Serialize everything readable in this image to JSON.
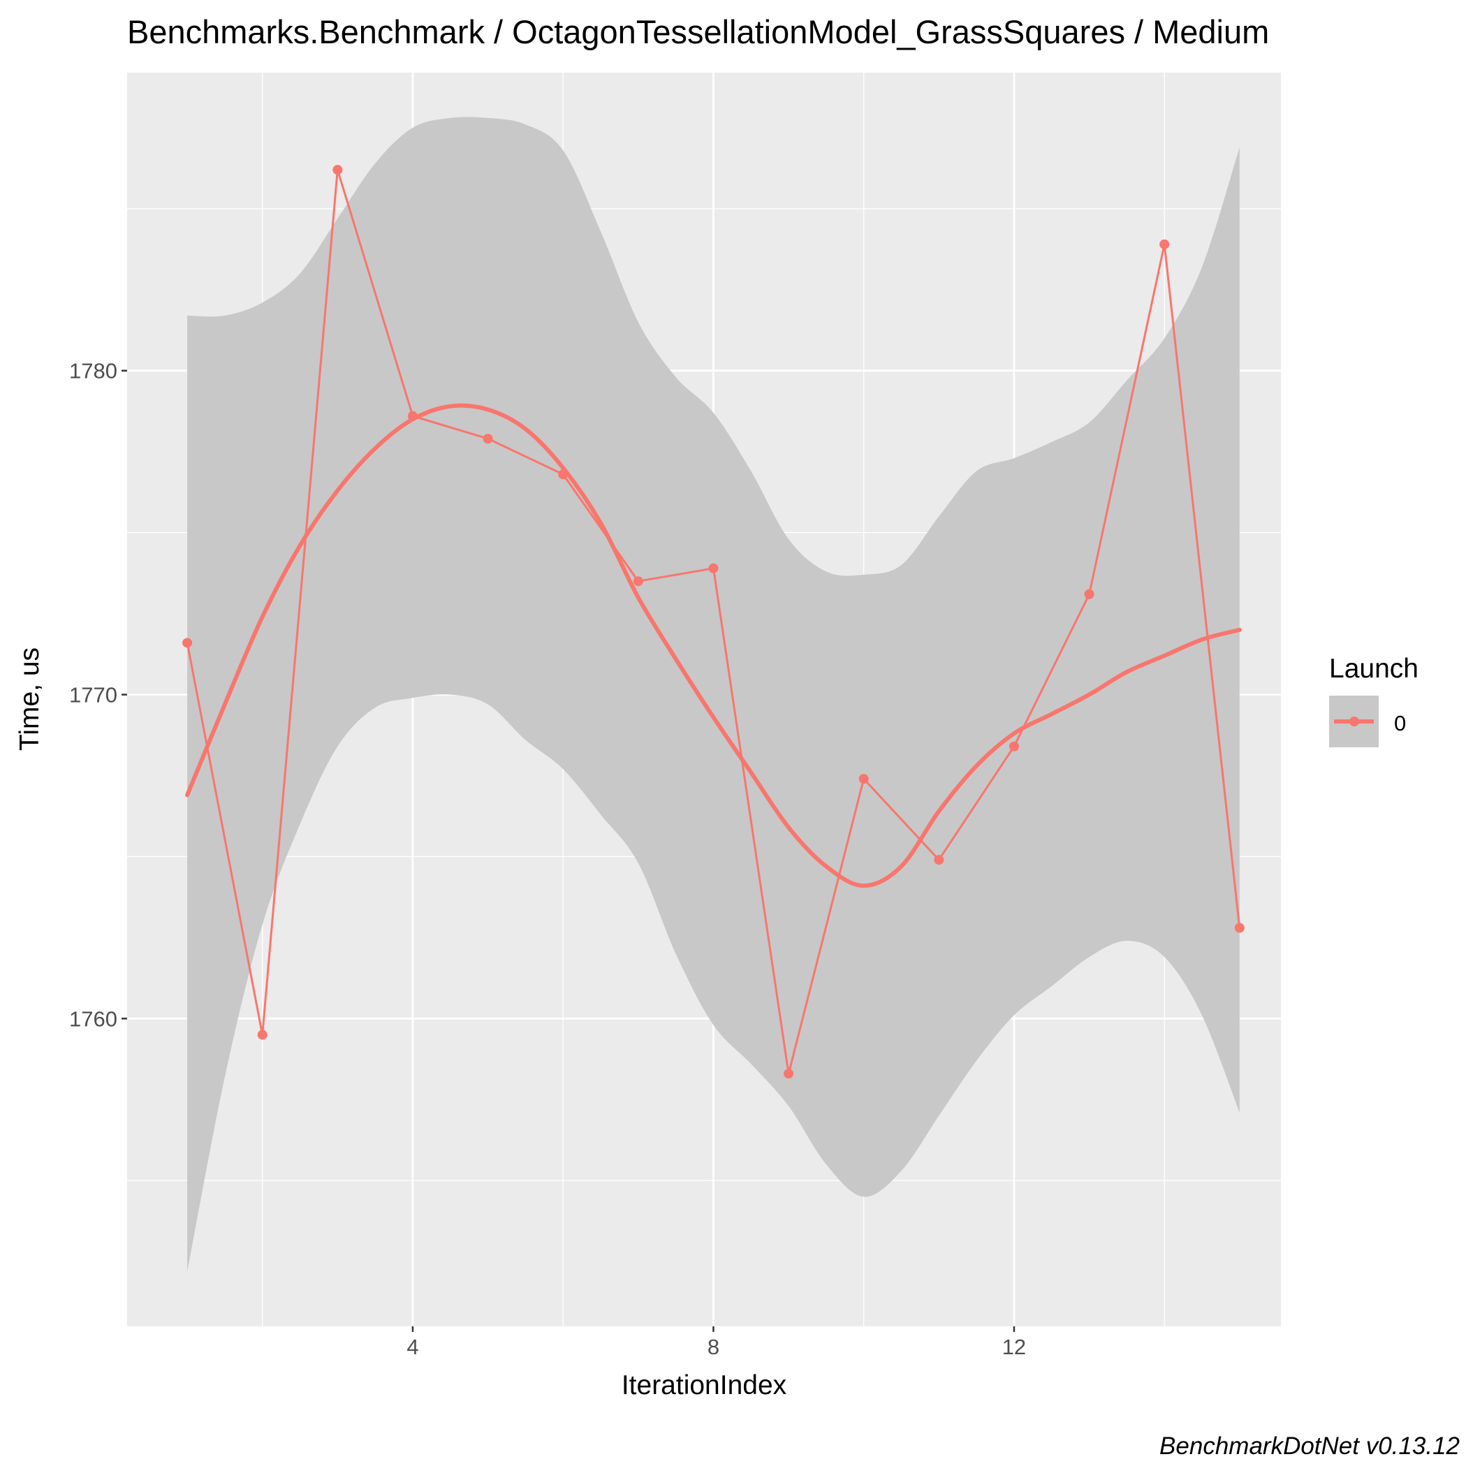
{
  "chart_data": {
    "type": "line",
    "title": "Benchmarks.Benchmark / OctagonTessellationModel_GrassSquares / Medium",
    "xlabel": "IterationIndex",
    "ylabel": "Time, us",
    "caption": "BenchmarkDotNet v0.13.12",
    "xlim": [
      0.2,
      15.55
    ],
    "ylim": [
      1750.5,
      1789.2
    ],
    "x_ticks": [
      4,
      8,
      12
    ],
    "x_tick_labels": [
      "4",
      "8",
      "12"
    ],
    "y_ticks": [
      1760,
      1770,
      1780
    ],
    "y_tick_labels": [
      "1760",
      "1770",
      "1780"
    ],
    "x_minor": [
      2,
      6,
      10,
      14
    ],
    "y_minor": [
      1755,
      1765,
      1775,
      1785
    ],
    "legend": {
      "title": "Launch",
      "entries": [
        "0"
      ],
      "position": "right"
    },
    "colors": {
      "series": "#F8766D",
      "panel": "#EBEBEB",
      "grid": "#FFFFFF",
      "ribbon": "#C8C8C8"
    },
    "series": [
      {
        "name": "0",
        "x": [
          1,
          2,
          3,
          4,
          5,
          6,
          7,
          8,
          9,
          10,
          11,
          12,
          13,
          14,
          15
        ],
        "values": [
          1771.6,
          1759.5,
          1786.2,
          1778.6,
          1777.9,
          1776.8,
          1773.5,
          1773.9,
          1758.3,
          1767.4,
          1764.9,
          1768.4,
          1773.1,
          1783.9,
          1762.8
        ]
      }
    ],
    "smooth": {
      "x": [
        1,
        1.5,
        2,
        2.5,
        3,
        3.5,
        4,
        4.5,
        5,
        5.5,
        6,
        6.5,
        7,
        7.5,
        8,
        8.5,
        9,
        9.5,
        10,
        10.5,
        11,
        11.5,
        12,
        12.5,
        13,
        13.5,
        14,
        14.5,
        15
      ],
      "fit": [
        1766.9,
        1769.7,
        1772.4,
        1774.6,
        1776.3,
        1777.6,
        1778.5,
        1778.9,
        1778.8,
        1778.2,
        1777.0,
        1775.3,
        1773.0,
        1771.1,
        1769.3,
        1767.6,
        1765.9,
        1764.7,
        1764.1,
        1764.7,
        1766.4,
        1767.8,
        1768.8,
        1769.4,
        1770.0,
        1770.7,
        1771.2,
        1771.7,
        1772.0
      ],
      "upper": [
        1781.7,
        1781.7,
        1782.1,
        1783.0,
        1784.7,
        1786.4,
        1787.5,
        1787.8,
        1787.8,
        1787.6,
        1786.8,
        1784.3,
        1781.5,
        1779.8,
        1778.7,
        1776.9,
        1774.8,
        1773.8,
        1773.7,
        1774.0,
        1775.5,
        1776.9,
        1777.3,
        1777.8,
        1778.4,
        1779.7,
        1781.0,
        1783.2,
        1786.9
      ],
      "lower": [
        1752.2,
        1758.2,
        1762.9,
        1766.0,
        1768.4,
        1769.6,
        1769.9,
        1770.0,
        1769.7,
        1768.6,
        1767.7,
        1766.3,
        1764.8,
        1762.0,
        1759.8,
        1758.6,
        1757.3,
        1755.5,
        1754.5,
        1755.3,
        1757.0,
        1758.7,
        1760.1,
        1761.0,
        1761.9,
        1762.4,
        1761.9,
        1760.1,
        1757.1
      ]
    }
  }
}
